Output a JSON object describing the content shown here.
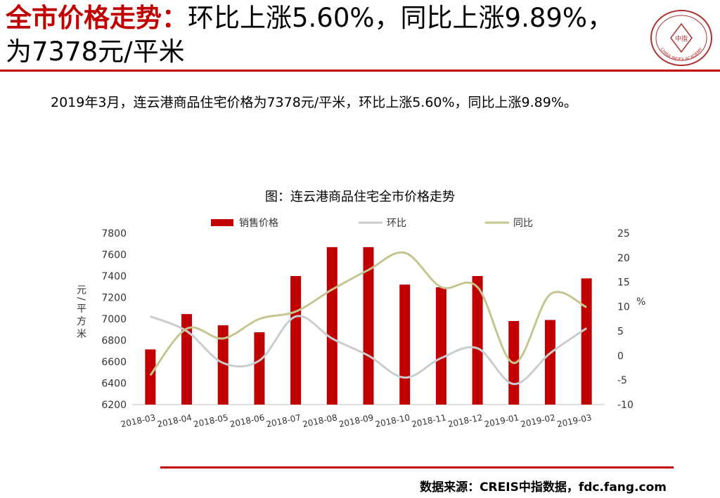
{
  "header": {
    "title_highlight": "全市价格走势：",
    "title_rest": "环比上涨5.60%，同比上涨9.89%，为7378元/平米"
  },
  "logo": {
    "center_text": "中指",
    "ring_text": "CHINA INDEX ACADEMY",
    "color": "#b03030"
  },
  "summary": "2019年3月，连云港商品住宅价格为7378元/平米，环比上涨5.60%，同比上涨9.89%。",
  "footer": {
    "source": "数据来源：CREIS中指数据，fdc.fang.com"
  },
  "colors": {
    "bar": "#c00000",
    "mom": "#c8cdd0",
    "yoy": "#c6c58f",
    "accent": "#c00000"
  },
  "chart_data": {
    "type": "bar",
    "title": "图：连云港商品住宅全市价格走势",
    "ylabel": "元/平方米",
    "y2label": "%",
    "categories": [
      "2018-03",
      "2018-04",
      "2018-05",
      "2018-06",
      "2018-07",
      "2018-08",
      "2018-09",
      "2018-10",
      "2018-11",
      "2018-12",
      "2019-01",
      "2019-02",
      "2019-03"
    ],
    "ylim": [
      6200,
      7800
    ],
    "yticks": [
      6200,
      6400,
      6600,
      6800,
      7000,
      7200,
      7400,
      7600,
      7800
    ],
    "y2lim": [
      -10,
      25
    ],
    "y2ticks": [
      -10,
      -5,
      0,
      5,
      10,
      15,
      20,
      25
    ],
    "legend_position": "top",
    "grid": false,
    "series": [
      {
        "name": "销售价格",
        "kind": "bar",
        "axis": "left",
        "values": [
          6715,
          7045,
          6940,
          6875,
          7400,
          7670,
          7670,
          7320,
          7295,
          7400,
          6980,
          6990,
          7378
        ]
      },
      {
        "name": "环比",
        "kind": "line",
        "axis": "right",
        "values": [
          8.0,
          5.0,
          -1.5,
          -1.0,
          8.0,
          3.5,
          0.0,
          -4.5,
          -0.5,
          1.5,
          -5.8,
          0.5,
          5.6
        ]
      },
      {
        "name": "同比",
        "kind": "line",
        "axis": "right",
        "values": [
          -4.0,
          5.5,
          3.5,
          7.5,
          9.0,
          13.5,
          17.5,
          21.0,
          14.0,
          14.0,
          -1.5,
          12.5,
          9.89
        ]
      }
    ]
  }
}
